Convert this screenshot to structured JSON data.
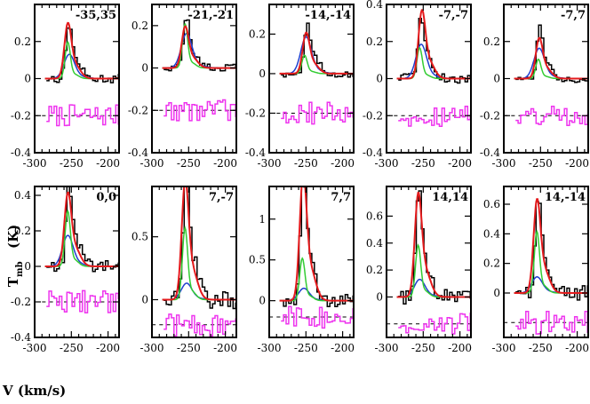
{
  "figure": {
    "xlabel": "V (km/s)",
    "ylabel": "T_mb (K)",
    "ylabel_main": "T",
    "ylabel_sub": "mb",
    "ylabel_unit": "(K)"
  },
  "chart_data": [
    {
      "type": "line",
      "title": "-35,35",
      "xlim": [
        -300,
        -185
      ],
      "ylim": [
        -0.4,
        0.4
      ],
      "yticks": [
        -0.4,
        -0.2,
        0,
        0.2
      ],
      "ytick_labels": [
        "-0.4",
        "-0.2",
        "0",
        "0.2"
      ],
      "xticks": [
        -300,
        -250,
        -200
      ],
      "xtick_labels": [
        "-300",
        "-250",
        "-200"
      ],
      "series": [
        {
          "role": "observed",
          "color": "#000000",
          "values": [
            [
              -283,
              0
            ],
            [
              -255,
              0.27
            ],
            [
              -240,
              0.03
            ]
          ]
        },
        {
          "role": "model-1",
          "color": "#e41a1c",
          "values": [
            [
              -255,
              0.26
            ]
          ]
        },
        {
          "role": "model-2",
          "color": "#33cc33",
          "values": [
            [
              -255,
              0.19
            ]
          ]
        },
        {
          "role": "model-3",
          "color": "#1f3fcf",
          "values": [
            [
              -253,
              0.12
            ]
          ]
        },
        {
          "role": "residual",
          "color": "#ee33ee",
          "offset": -0.2,
          "values": [
            [
              -283,
              -0.2
            ],
            [
              -187,
              -0.2
            ]
          ]
        }
      ]
    },
    {
      "type": "line",
      "title": "-21,-21",
      "xlim": [
        -300,
        -185
      ],
      "ylim": [
        -0.4,
        0.3
      ],
      "yticks": [
        -0.4,
        -0.2,
        0,
        0.2
      ],
      "ytick_labels": [
        "-0.4",
        "-0.2",
        "0",
        "0.2"
      ],
      "xticks": [
        -300,
        -250,
        -200
      ],
      "xtick_labels": [
        "-300",
        "-250",
        "-200"
      ],
      "series": [
        {
          "role": "observed",
          "color": "#000000",
          "values": [
            [
              -255,
              0.21
            ]
          ]
        },
        {
          "role": "model-1",
          "color": "#e41a1c",
          "values": [
            [
              -255,
              0.17
            ]
          ]
        },
        {
          "role": "model-2",
          "color": "#33cc33",
          "values": [
            [
              -255,
              0.2
            ]
          ]
        },
        {
          "role": "model-3",
          "color": "#1f3fcf",
          "values": [
            [
              -253,
              0.15
            ]
          ]
        },
        {
          "role": "residual",
          "color": "#ee33ee",
          "offset": -0.2,
          "values": [
            [
              -283,
              -0.2
            ],
            [
              -187,
              -0.2
            ]
          ]
        }
      ]
    },
    {
      "type": "line",
      "title": "-14,-14",
      "xlim": [
        -300,
        -185
      ],
      "ylim": [
        -0.4,
        0.35
      ],
      "yticks": [
        -0.4,
        -0.2,
        0,
        0.2
      ],
      "ytick_labels": [
        "-0.4",
        "-0.2",
        "0",
        "0.2"
      ],
      "xticks": [
        -300,
        -250,
        -200
      ],
      "xtick_labels": [
        "-300",
        "-250",
        "-200"
      ],
      "series": [
        {
          "role": "observed",
          "color": "#000000",
          "values": [
            [
              -250,
              0.22
            ]
          ]
        },
        {
          "role": "model-1",
          "color": "#e41a1c",
          "values": [
            [
              -250,
              0.18
            ]
          ]
        },
        {
          "role": "model-2",
          "color": "#33cc33",
          "values": [
            [
              -252,
              0.09
            ]
          ]
        },
        {
          "role": "model-3",
          "color": "#1f3fcf",
          "values": [
            [
              -250,
              0.17
            ]
          ]
        },
        {
          "role": "residual",
          "color": "#ee33ee",
          "offset": -0.2,
          "values": [
            [
              -283,
              -0.2
            ],
            [
              -187,
              -0.2
            ]
          ]
        }
      ]
    },
    {
      "type": "line",
      "title": "-7,-7",
      "xlim": [
        -300,
        -185
      ],
      "ylim": [
        -0.4,
        0.4
      ],
      "yticks": [
        -0.4,
        -0.2,
        0,
        0.2,
        0.4
      ],
      "ytick_labels": [
        "-0.4",
        "-0.2",
        "0",
        "0.2",
        "0.4"
      ],
      "xticks": [
        -300,
        -250,
        -200
      ],
      "xtick_labels": [
        "-300",
        "-250",
        "-200"
      ],
      "series": [
        {
          "role": "observed",
          "color": "#000000",
          "values": [
            [
              -255,
              0.32
            ]
          ]
        },
        {
          "role": "model-1",
          "color": "#e41a1c",
          "values": [
            [
              -252,
              0.32
            ]
          ]
        },
        {
          "role": "model-2",
          "color": "#33cc33",
          "values": [
            [
              -255,
              0.16
            ]
          ]
        },
        {
          "role": "model-3",
          "color": "#1f3fcf",
          "values": [
            [
              -253,
              0.17
            ]
          ]
        },
        {
          "role": "residual",
          "color": "#ee33ee",
          "offset": -0.2,
          "values": [
            [
              -283,
              -0.2
            ],
            [
              -187,
              -0.2
            ]
          ]
        }
      ]
    },
    {
      "type": "line",
      "title": "-7,7",
      "xlim": [
        -300,
        -185
      ],
      "ylim": [
        -0.4,
        0.4
      ],
      "yticks": [
        -0.4,
        -0.2,
        0,
        0.2
      ],
      "ytick_labels": [
        "-0.4",
        "-0.2",
        "0",
        "0.2"
      ],
      "xticks": [
        -300,
        -250,
        -200
      ],
      "xtick_labels": [
        "-300",
        "-250",
        "-200"
      ],
      "series": [
        {
          "role": "observed",
          "color": "#000000",
          "values": [
            [
              -253,
              0.25
            ]
          ]
        },
        {
          "role": "model-1",
          "color": "#e41a1c",
          "values": [
            [
              -252,
              0.19
            ]
          ]
        },
        {
          "role": "model-2",
          "color": "#33cc33",
          "values": [
            [
              -253,
              0.1
            ]
          ]
        },
        {
          "role": "model-3",
          "color": "#1f3fcf",
          "values": [
            [
              -252,
              0.15
            ]
          ]
        },
        {
          "role": "residual",
          "color": "#ee33ee",
          "offset": -0.2,
          "values": [
            [
              -283,
              -0.2
            ],
            [
              -187,
              -0.2
            ]
          ]
        }
      ]
    },
    {
      "type": "line",
      "title": "0,0",
      "xlim": [
        -300,
        -185
      ],
      "ylim": [
        -0.4,
        0.45
      ],
      "yticks": [
        -0.4,
        -0.2,
        0,
        0.2,
        0.4
      ],
      "ytick_labels": [
        "-0.4",
        "-0.2",
        "0",
        "0.2",
        "0.4"
      ],
      "xticks": [
        -300,
        -250,
        -200
      ],
      "xtick_labels": [
        "-300",
        "-250",
        "-200"
      ],
      "series": [
        {
          "role": "observed",
          "color": "#000000",
          "values": [
            [
              -255,
              0.41
            ]
          ]
        },
        {
          "role": "model-1",
          "color": "#e41a1c",
          "values": [
            [
              -255,
              0.36
            ]
          ]
        },
        {
          "role": "model-2",
          "color": "#33cc33",
          "values": [
            [
              -255,
              0.3
            ]
          ]
        },
        {
          "role": "model-3",
          "color": "#1f3fcf",
          "values": [
            [
              -255,
              0.16
            ]
          ]
        },
        {
          "role": "residual",
          "color": "#ee33ee",
          "offset": -0.2,
          "values": [
            [
              -283,
              -0.2
            ],
            [
              -187,
              -0.2
            ]
          ]
        }
      ]
    },
    {
      "type": "line",
      "title": "7,-7",
      "xlim": [
        -300,
        -185
      ],
      "ylim": [
        -0.3,
        0.9
      ],
      "yticks": [
        0,
        0.5
      ],
      "ytick_labels": [
        "0",
        "0.5"
      ],
      "xticks": [
        -300,
        -250,
        -200
      ],
      "xtick_labels": [
        "-300",
        "-250",
        "-200"
      ],
      "series": [
        {
          "role": "observed",
          "color": "#000000",
          "values": [
            [
              -255,
              0.89
            ]
          ]
        },
        {
          "role": "model-1",
          "color": "#e41a1c",
          "values": [
            [
              -255,
              0.82
            ]
          ]
        },
        {
          "role": "model-2",
          "color": "#33cc33",
          "values": [
            [
              -255,
              0.55
            ]
          ]
        },
        {
          "role": "model-3",
          "color": "#1f3fcf",
          "values": [
            [
              -253,
              0.12
            ]
          ]
        },
        {
          "role": "residual",
          "color": "#ee33ee",
          "offset": -0.2,
          "values": [
            [
              -283,
              -0.2
            ],
            [
              -187,
              -0.2
            ]
          ]
        }
      ]
    },
    {
      "type": "line",
      "title": "7,7",
      "xlim": [
        -300,
        -185
      ],
      "ylim": [
        -0.45,
        1.4
      ],
      "yticks": [
        0,
        0.5,
        1
      ],
      "ytick_labels": [
        "0",
        "0.5",
        "1"
      ],
      "xticks": [
        -300,
        -250,
        -200
      ],
      "xtick_labels": [
        "-300",
        "-250",
        "-200"
      ],
      "series": [
        {
          "role": "observed",
          "color": "#000000",
          "values": [
            [
              -255,
              1.4
            ]
          ]
        },
        {
          "role": "model-1",
          "color": "#e41a1c",
          "values": [
            [
              -254,
              1.35
            ]
          ]
        },
        {
          "role": "model-2",
          "color": "#33cc33",
          "values": [
            [
              -255,
              0.5
            ]
          ]
        },
        {
          "role": "model-3",
          "color": "#1f3fcf",
          "values": [
            [
              -253,
              0.14
            ]
          ]
        },
        {
          "role": "residual",
          "color": "#ee33ee",
          "offset": -0.2,
          "values": [
            [
              -283,
              -0.2
            ],
            [
              -187,
              -0.2
            ]
          ]
        }
      ]
    },
    {
      "type": "line",
      "title": "14,14",
      "xlim": [
        -300,
        -185
      ],
      "ylim": [
        -0.3,
        0.82
      ],
      "yticks": [
        0,
        0.2,
        0.4,
        0.6
      ],
      "ytick_labels": [
        "0",
        "0.2",
        "0.4",
        "0.6"
      ],
      "xticks": [
        -300,
        -250,
        -200
      ],
      "xtick_labels": [
        "-300",
        "-250",
        "-200"
      ],
      "series": [
        {
          "role": "observed",
          "color": "#000000",
          "values": [
            [
              -258,
              0.7
            ]
          ]
        },
        {
          "role": "model-1",
          "color": "#e41a1c",
          "values": [
            [
              -257,
              0.67
            ]
          ]
        },
        {
          "role": "model-2",
          "color": "#33cc33",
          "values": [
            [
              -257,
              0.37
            ]
          ]
        },
        {
          "role": "model-3",
          "color": "#1f3fcf",
          "values": [
            [
              -255,
              0.12
            ]
          ]
        },
        {
          "role": "residual",
          "color": "#ee33ee",
          "offset": -0.2,
          "values": [
            [
              -283,
              -0.2
            ],
            [
              -187,
              -0.2
            ]
          ]
        }
      ]
    },
    {
      "type": "line",
      "title": "14,-14",
      "xlim": [
        -300,
        -185
      ],
      "ylim": [
        -0.3,
        0.72
      ],
      "yticks": [
        0,
        0.2,
        0.4,
        0.6
      ],
      "ytick_labels": [
        "0",
        "0.2",
        "0.4",
        "0.6"
      ],
      "xticks": [
        -300,
        -250,
        -200
      ],
      "xtick_labels": [
        "-300",
        "-250",
        "-200"
      ],
      "series": [
        {
          "role": "observed",
          "color": "#000000",
          "values": [
            [
              -255,
              0.6
            ]
          ]
        },
        {
          "role": "model-1",
          "color": "#e41a1c",
          "values": [
            [
              -255,
              0.55
            ]
          ]
        },
        {
          "role": "model-2",
          "color": "#33cc33",
          "values": [
            [
              -255,
              0.4
            ]
          ]
        },
        {
          "role": "model-3",
          "color": "#1f3fcf",
          "values": [
            [
              -255,
              0.1
            ]
          ]
        },
        {
          "role": "residual",
          "color": "#ee33ee",
          "offset": -0.2,
          "values": [
            [
              -283,
              -0.2
            ],
            [
              -187,
              -0.2
            ]
          ]
        }
      ]
    }
  ]
}
